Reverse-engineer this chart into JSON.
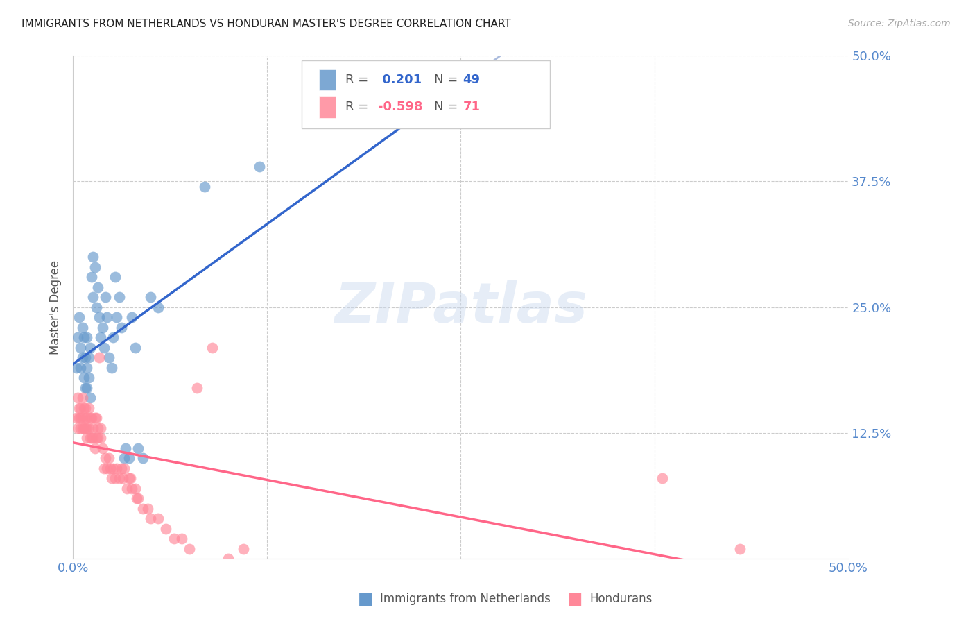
{
  "title": "IMMIGRANTS FROM NETHERLANDS VS HONDURAN MASTER'S DEGREE CORRELATION CHART",
  "source_text": "Source: ZipAtlas.com",
  "ylabel": "Master's Degree",
  "xlim": [
    0.0,
    0.5
  ],
  "ylim": [
    0.0,
    0.5
  ],
  "ytick_labels": [
    "12.5%",
    "25.0%",
    "37.5%",
    "50.0%"
  ],
  "ytick_values": [
    0.125,
    0.25,
    0.375,
    0.5
  ],
  "grid_color": "#cccccc",
  "watermark": "ZIPatlas",
  "legend_r1": " 0.201",
  "legend_n1": "49",
  "legend_r2": "-0.598",
  "legend_n2": "71",
  "blue_color": "#6699cc",
  "pink_color": "#ff8899",
  "blue_line_color": "#3366cc",
  "pink_line_color": "#ff6688",
  "tick_label_color": "#5588cc",
  "blue_x": [
    0.002,
    0.003,
    0.004,
    0.005,
    0.005,
    0.006,
    0.006,
    0.007,
    0.007,
    0.008,
    0.008,
    0.009,
    0.009,
    0.009,
    0.01,
    0.01,
    0.011,
    0.011,
    0.012,
    0.013,
    0.013,
    0.014,
    0.015,
    0.016,
    0.017,
    0.018,
    0.019,
    0.02,
    0.021,
    0.022,
    0.023,
    0.025,
    0.026,
    0.027,
    0.028,
    0.03,
    0.031,
    0.033,
    0.034,
    0.036,
    0.038,
    0.04,
    0.042,
    0.045,
    0.05,
    0.055,
    0.085,
    0.12,
    0.21
  ],
  "blue_y": [
    0.19,
    0.22,
    0.24,
    0.21,
    0.19,
    0.23,
    0.2,
    0.22,
    0.18,
    0.2,
    0.17,
    0.22,
    0.19,
    0.17,
    0.2,
    0.18,
    0.21,
    0.16,
    0.28,
    0.3,
    0.26,
    0.29,
    0.25,
    0.27,
    0.24,
    0.22,
    0.23,
    0.21,
    0.26,
    0.24,
    0.2,
    0.19,
    0.22,
    0.28,
    0.24,
    0.26,
    0.23,
    0.1,
    0.11,
    0.1,
    0.24,
    0.21,
    0.11,
    0.1,
    0.26,
    0.25,
    0.37,
    0.39,
    0.44
  ],
  "pink_x": [
    0.002,
    0.003,
    0.003,
    0.004,
    0.004,
    0.005,
    0.005,
    0.005,
    0.006,
    0.006,
    0.006,
    0.007,
    0.007,
    0.008,
    0.008,
    0.008,
    0.009,
    0.009,
    0.009,
    0.01,
    0.01,
    0.011,
    0.011,
    0.012,
    0.012,
    0.013,
    0.013,
    0.014,
    0.014,
    0.015,
    0.015,
    0.016,
    0.016,
    0.017,
    0.018,
    0.018,
    0.019,
    0.02,
    0.021,
    0.022,
    0.023,
    0.024,
    0.025,
    0.026,
    0.027,
    0.028,
    0.03,
    0.031,
    0.032,
    0.033,
    0.035,
    0.036,
    0.037,
    0.038,
    0.04,
    0.041,
    0.042,
    0.045,
    0.048,
    0.05,
    0.055,
    0.06,
    0.065,
    0.07,
    0.075,
    0.08,
    0.09,
    0.1,
    0.11,
    0.38,
    0.43
  ],
  "pink_y": [
    0.14,
    0.16,
    0.13,
    0.15,
    0.14,
    0.15,
    0.14,
    0.13,
    0.16,
    0.14,
    0.13,
    0.15,
    0.13,
    0.15,
    0.14,
    0.13,
    0.14,
    0.13,
    0.12,
    0.15,
    0.13,
    0.14,
    0.12,
    0.14,
    0.12,
    0.13,
    0.12,
    0.14,
    0.11,
    0.14,
    0.12,
    0.13,
    0.12,
    0.2,
    0.13,
    0.12,
    0.11,
    0.09,
    0.1,
    0.09,
    0.1,
    0.09,
    0.08,
    0.09,
    0.08,
    0.09,
    0.08,
    0.09,
    0.08,
    0.09,
    0.07,
    0.08,
    0.08,
    0.07,
    0.07,
    0.06,
    0.06,
    0.05,
    0.05,
    0.04,
    0.04,
    0.03,
    0.02,
    0.02,
    0.01,
    0.17,
    0.21,
    0.0,
    0.01,
    0.08,
    0.01
  ]
}
